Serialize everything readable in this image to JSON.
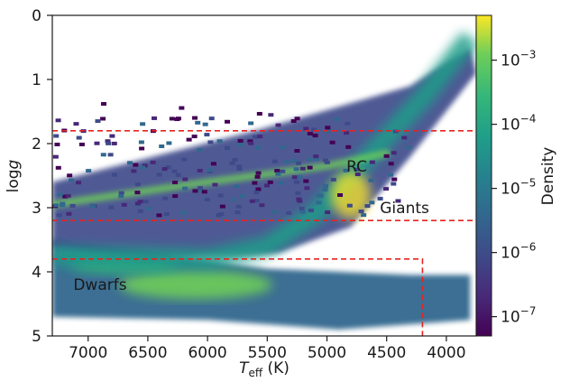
{
  "chart_data": {
    "type": "heatmap",
    "title": "",
    "xlabel_main": "T",
    "xlabel_sub": "eff",
    "xlabel_unit": " (K)",
    "ylabel_main": "log",
    "ylabel_italic": "g",
    "x_reversed": true,
    "xlim": [
      7300,
      3750
    ],
    "ylim": [
      0,
      5
    ],
    "y_reversed": true,
    "x_ticks": [
      7000,
      6500,
      6000,
      5500,
      5000,
      4500,
      4000
    ],
    "y_ticks": [
      0,
      1,
      2,
      3,
      4,
      5
    ],
    "grid": false,
    "colorbar": {
      "label": "Density",
      "scale": "log",
      "colormap": "viridis",
      "range": [
        5e-08,
        0.005
      ],
      "ticks": [
        {
          "value": 0.001,
          "base": "10",
          "exp": "−3"
        },
        {
          "value": 0.0001,
          "base": "10",
          "exp": "−4"
        },
        {
          "value": 1e-05,
          "base": "10",
          "exp": "−5"
        },
        {
          "value": 1e-06,
          "base": "10",
          "exp": "−6"
        },
        {
          "value": 1e-07,
          "base": "10",
          "exp": "−7"
        }
      ]
    },
    "annotations": [
      {
        "text": "RC",
        "teff": 4750,
        "logg": 2.35
      },
      {
        "text": "Giants",
        "teff": 4350,
        "logg": 3.0
      },
      {
        "text": "Dwarfs",
        "teff": 6900,
        "logg": 4.2
      }
    ],
    "threshold_lines": [
      {
        "type": "hline",
        "logg": 1.8,
        "color": "#e8231f",
        "style": "dashed"
      },
      {
        "type": "hline",
        "logg": 3.2,
        "color": "#e8231f",
        "style": "dashed"
      },
      {
        "type": "polyline",
        "points": [
          [
            7300,
            3.8
          ],
          [
            4200,
            3.8
          ],
          [
            4200,
            5.0
          ]
        ],
        "color": "#e8231f",
        "style": "dashed"
      }
    ],
    "density_features": [
      {
        "name": "giant-branch",
        "path": [
          [
            3800,
            0.35
          ],
          [
            4200,
            1.3
          ],
          [
            4700,
            2.3
          ],
          [
            5100,
            3.1
          ],
          [
            5500,
            3.6
          ],
          [
            6000,
            3.8
          ],
          [
            7300,
            3.75
          ]
        ]
      },
      {
        "name": "red-clump",
        "teff": 4800,
        "logg": 2.8
      },
      {
        "name": "main-sequence",
        "teff_range": [
          7300,
          3800
        ],
        "logg_range": [
          3.5,
          4.7
        ]
      }
    ]
  }
}
